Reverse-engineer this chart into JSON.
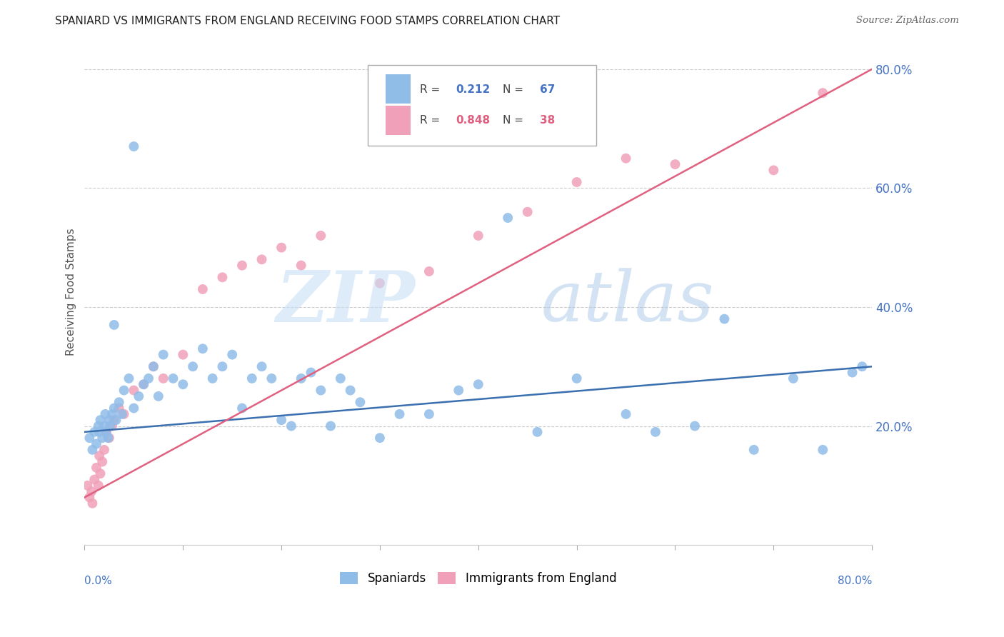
{
  "title": "SPANIARD VS IMMIGRANTS FROM ENGLAND RECEIVING FOOD STAMPS CORRELATION CHART",
  "source": "Source: ZipAtlas.com",
  "ylabel": "Receiving Food Stamps",
  "xlim": [
    0,
    80
  ],
  "ylim": [
    0,
    85
  ],
  "background_color": "#ffffff",
  "spaniards_color": "#90bce8",
  "england_color": "#f0a0b8",
  "trendline_blue": "#3a6fb0",
  "trendline_pink": "#e06080",
  "legend_r1_val": "0.212",
  "legend_n1_val": "67",
  "legend_r2_val": "0.848",
  "legend_n2_val": "38",
  "sp_x": [
    0.5,
    0.8,
    1.0,
    1.2,
    1.4,
    1.5,
    1.6,
    1.8,
    2.0,
    2.1,
    2.2,
    2.4,
    2.5,
    2.6,
    2.8,
    3.0,
    3.2,
    3.5,
    3.8,
    4.0,
    4.5,
    5.0,
    5.5,
    6.0,
    6.5,
    7.0,
    7.5,
    8.0,
    9.0,
    10.0,
    11.0,
    12.0,
    13.0,
    14.0,
    15.0,
    16.0,
    17.0,
    18.0,
    19.0,
    20.0,
    21.0,
    22.0,
    23.0,
    24.0,
    25.0,
    26.0,
    27.0,
    28.0,
    30.0,
    32.0,
    35.0,
    38.0,
    40.0,
    43.0,
    46.0,
    50.0,
    55.0,
    58.0,
    62.0,
    65.0,
    68.0,
    72.0,
    75.0,
    78.0,
    79.0,
    3.0,
    5.0
  ],
  "sp_y": [
    18.0,
    16.0,
    19.0,
    17.0,
    20.0,
    19.0,
    21.0,
    18.0,
    20.0,
    22.0,
    19.0,
    18.0,
    21.0,
    20.0,
    22.0,
    23.0,
    21.0,
    24.0,
    22.0,
    26.0,
    28.0,
    23.0,
    25.0,
    27.0,
    28.0,
    30.0,
    25.0,
    32.0,
    28.0,
    27.0,
    30.0,
    33.0,
    28.0,
    30.0,
    32.0,
    23.0,
    28.0,
    30.0,
    28.0,
    21.0,
    20.0,
    28.0,
    29.0,
    26.0,
    20.0,
    28.0,
    26.0,
    24.0,
    18.0,
    22.0,
    22.0,
    26.0,
    27.0,
    55.0,
    19.0,
    28.0,
    22.0,
    19.0,
    20.0,
    38.0,
    16.0,
    28.0,
    16.0,
    29.0,
    30.0,
    37.0,
    67.0
  ],
  "eng_x": [
    0.3,
    0.5,
    0.7,
    0.8,
    1.0,
    1.2,
    1.4,
    1.5,
    1.6,
    1.8,
    2.0,
    2.2,
    2.5,
    2.8,
    3.0,
    3.5,
    4.0,
    5.0,
    6.0,
    7.0,
    8.0,
    10.0,
    12.0,
    14.0,
    16.0,
    18.0,
    20.0,
    22.0,
    24.0,
    30.0,
    35.0,
    40.0,
    45.0,
    50.0,
    55.0,
    60.0,
    70.0,
    75.0
  ],
  "eng_y": [
    10.0,
    8.0,
    9.0,
    7.0,
    11.0,
    13.0,
    10.0,
    15.0,
    12.0,
    14.0,
    16.0,
    19.0,
    18.0,
    20.0,
    21.0,
    23.0,
    22.0,
    26.0,
    27.0,
    30.0,
    28.0,
    32.0,
    43.0,
    45.0,
    47.0,
    48.0,
    50.0,
    47.0,
    52.0,
    44.0,
    46.0,
    52.0,
    56.0,
    61.0,
    65.0,
    64.0,
    63.0,
    76.0
  ]
}
